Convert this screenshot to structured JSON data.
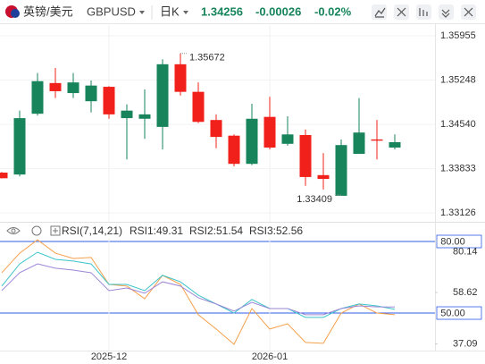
{
  "header": {
    "pair": "英镑/美元",
    "code": "GBPUSD",
    "period": "日K",
    "price": "1.34256",
    "change": "-0.00026",
    "change_pct": "-0.02%"
  },
  "chart_data": [
    {
      "type": "candlestick",
      "up_color": "#17845b",
      "down_color": "#f2201a",
      "grid": true,
      "categories": [
        null,
        null,
        null,
        null,
        null,
        null,
        "2025-12",
        null,
        null,
        null,
        null,
        null,
        null,
        null,
        null,
        "2026-01",
        null,
        null,
        null,
        null,
        null,
        null,
        null
      ],
      "open": [
        1.3377,
        1.3374,
        1.3471,
        1.352,
        1.3504,
        1.3491,
        1.3514,
        1.3464,
        1.3463,
        1.345,
        1.355,
        1.3506,
        1.3461,
        1.3436,
        1.3391,
        1.3466,
        1.3423,
        1.3437,
        1.3373,
        1.334,
        1.3407,
        1.343,
        1.3417
      ],
      "high": [
        1.3378,
        1.3476,
        1.3536,
        1.3544,
        1.3536,
        1.3524,
        1.3515,
        1.3486,
        1.351,
        1.3558,
        1.35672,
        1.3521,
        1.347,
        1.3438,
        1.3487,
        1.3498,
        1.3467,
        1.3446,
        1.3408,
        1.343,
        1.3496,
        1.3461,
        1.3438
      ],
      "low": [
        1.3368,
        1.3371,
        1.3468,
        1.3496,
        1.3496,
        1.3473,
        1.3463,
        1.3398,
        1.3431,
        1.3414,
        1.35,
        1.3456,
        1.3416,
        1.3387,
        1.3389,
        1.3414,
        1.342,
        1.3356,
        1.335,
        1.33409,
        1.3407,
        1.3398,
        1.3414
      ],
      "close": [
        1.3368,
        1.3464,
        1.3523,
        1.3507,
        1.3521,
        1.3516,
        1.347,
        1.3476,
        1.347,
        1.355,
        1.3506,
        1.3458,
        1.3434,
        1.3391,
        1.3463,
        1.3417,
        1.3438,
        1.337,
        1.3367,
        1.3421,
        1.3441,
        1.3428,
        1.34256
      ],
      "ylim": [
        1.32985,
        1.36126
      ],
      "yticks": [
        1.35955,
        1.35248,
        {
          "value": 1.3454,
          "label": "1.34540"
        },
        1.33833,
        1.33126
      ]
    },
    {
      "type": "line",
      "title": "RSI(7,14,21)",
      "legend_labels": [
        "RSI1:49.31",
        "RSI2:51.54",
        "RSI3:52.56"
      ],
      "categories": [
        null,
        null,
        null,
        null,
        null,
        null,
        "2025-12",
        null,
        null,
        null,
        null,
        null,
        null,
        null,
        null,
        "2026-01",
        null,
        null,
        null,
        null,
        null,
        null,
        null
      ],
      "series": [
        {
          "name": "RSI1",
          "color": "#f5a04a",
          "values": [
            66.9,
            75.1,
            80.7,
            75.1,
            72.9,
            73.3,
            62.0,
            61.3,
            56.0,
            65.8,
            62.0,
            49.3,
            43.3,
            36.9,
            51.9,
            43.3,
            45.5,
            37.7,
            37.3,
            50.0,
            53.8,
            50.0,
            49.31
          ]
        },
        {
          "name": "RSI2",
          "color": "#3cc3c9",
          "values": [
            61.3,
            70.6,
            75.5,
            72.5,
            71.8,
            70.6,
            62.0,
            62.0,
            59.4,
            65.8,
            63.1,
            57.5,
            53.8,
            50.0,
            55.7,
            51.9,
            51.9,
            48.2,
            48.2,
            51.9,
            53.8,
            53.0,
            51.54
          ]
        },
        {
          "name": "RSI3",
          "color": "#9a86d6",
          "values": [
            59.4,
            66.9,
            70.6,
            68.8,
            68.0,
            66.9,
            59.4,
            60.5,
            58.3,
            63.1,
            61.3,
            56.4,
            53.8,
            50.8,
            54.5,
            51.9,
            51.9,
            49.3,
            49.3,
            51.9,
            53.0,
            52.6,
            52.56
          ]
        }
      ],
      "ylim": [
        34,
        83
      ],
      "yticks": [
        80.14,
        58.62,
        37.09
      ],
      "reference_lines": [
        {
          "value": 80,
          "label": "80.00"
        },
        {
          "value": 50,
          "label": "50.00"
        }
      ],
      "reference_color": "#2f5bea"
    }
  ]
}
